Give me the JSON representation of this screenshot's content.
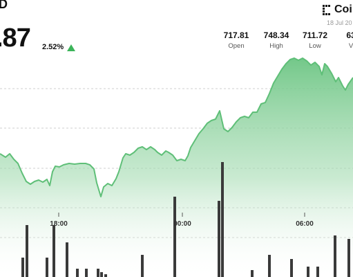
{
  "header": {
    "title_fragment": "D",
    "price_fragment": ".87",
    "change_pct": "2.52%",
    "change_direction": "up-arrow-icon",
    "brand": "Coi",
    "date_fragment": "18 Jul 20"
  },
  "stats": [
    {
      "value": "717.81",
      "label": "Open"
    },
    {
      "value": "748.34",
      "label": "High"
    },
    {
      "value": "711.72",
      "label": "Low"
    },
    {
      "value": "63",
      "label": "V"
    }
  ],
  "axis": {
    "times": [
      "18:00",
      "00:00",
      "06:00"
    ]
  },
  "colors": {
    "line": "#5fbf78",
    "fill_top": "#7ccd8d",
    "volume": "#3a3a3a",
    "up": "#3cb45a"
  }
}
